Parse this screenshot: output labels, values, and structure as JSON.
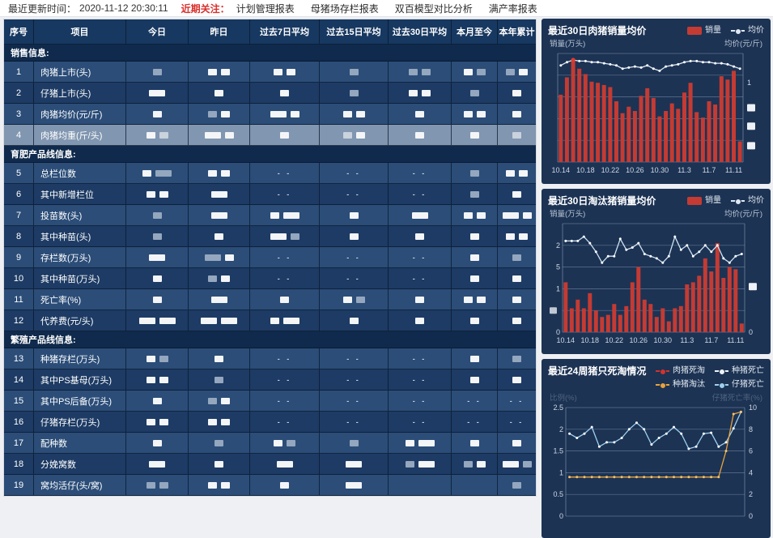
{
  "topbar": {
    "update_label": "最近更新时间：",
    "update_time": "2020-11-12 20:30:11",
    "focus_label": "近期关注：",
    "menu": [
      "计划管理报表",
      "母猪场存栏报表",
      "双百模型对比分析",
      "满产率报表"
    ]
  },
  "table": {
    "columns": [
      "序号",
      "项目",
      "今日",
      "昨日",
      "过去7日平均",
      "过去15日平均",
      "过去30日平均",
      "本月至今",
      "本年累计"
    ],
    "redaction_note_colors": {
      "white_block": "#f3f5f7",
      "grey_block": "#94a7be"
    },
    "sections": [
      {
        "title": "销售信息:",
        "rows": [
          {
            "num": "1",
            "label": "肉猪上市(头)",
            "cells": [
              "g",
              "w w",
              "w w",
              "g",
              "g g",
              "w g",
              "g w"
            ]
          },
          {
            "num": "2",
            "label": "仔猪上市(头)",
            "cells": [
              "W",
              "w",
              "w",
              "g",
              "w w",
              "g",
              "w"
            ]
          },
          {
            "num": "3",
            "label": "肉猪均价(元/斤)",
            "cells": [
              "w",
              "g w",
              "W w",
              "w w",
              "w",
              "w w",
              "w"
            ]
          },
          {
            "num": "4",
            "label": "肉猪均重(斤/头)",
            "cells": [
              "w g",
              "W w",
              "w",
              "g w",
              "w",
              "w",
              "g"
            ],
            "selected": true
          }
        ]
      },
      {
        "title": "育肥产品线信息:",
        "rows": [
          {
            "num": "5",
            "label": "总栏位数",
            "cells": [
              "w G",
              "w w",
              "-",
              "-",
              "-",
              "g",
              "w w"
            ]
          },
          {
            "num": "6",
            "label": "其中新增栏位",
            "cells": [
              "w w",
              "W",
              "-",
              "-",
              "-",
              "g",
              "w"
            ]
          },
          {
            "num": "7",
            "label": "投苗数(头)",
            "cells": [
              "g",
              "W",
              "w W",
              "w",
              "W",
              "w w",
              "W w"
            ]
          },
          {
            "num": "8",
            "label": "其中种苗(头)",
            "cells": [
              "g",
              "w",
              "W g",
              "w",
              "w",
              "w",
              "w w"
            ]
          },
          {
            "num": "9",
            "label": "存栏数(万头)",
            "cells": [
              "W",
              "G w",
              "-",
              "-",
              "-",
              "w",
              "g"
            ]
          },
          {
            "num": "10",
            "label": "其中种苗(万头)",
            "cells": [
              "w",
              "g w",
              "-",
              "-",
              "-",
              "w",
              "w"
            ]
          },
          {
            "num": "11",
            "label": "死亡率(%)",
            "cells": [
              "w",
              "W",
              "w",
              "w g",
              "w",
              "w w",
              "w"
            ]
          },
          {
            "num": "12",
            "label": "代养费(元/头)",
            "cells": [
              "W W",
              "W W",
              "w W",
              "w",
              "w",
              "w",
              "w"
            ]
          }
        ]
      },
      {
        "title": "繁殖产品线信息:",
        "rows": [
          {
            "num": "13",
            "label": "种猪存栏(万头)",
            "cells": [
              "w g",
              "w",
              "-",
              "-",
              "-",
              "w",
              "g"
            ]
          },
          {
            "num": "14",
            "label": "其中PS基母(万头)",
            "cells": [
              "w w",
              "g",
              "-",
              "-",
              "-",
              "w",
              "w"
            ]
          },
          {
            "num": "15",
            "label": "其中PS后备(万头)",
            "cells": [
              "w",
              "g w",
              "-",
              "-",
              "-",
              "-",
              "-"
            ]
          },
          {
            "num": "16",
            "label": "仔猪存栏(万头)",
            "cells": [
              "w w",
              "w w",
              "-",
              "-",
              "-",
              "-",
              "-"
            ]
          },
          {
            "num": "17",
            "label": "配种数",
            "cells": [
              "w",
              "g",
              "w g",
              "g",
              "w W",
              "w",
              "w"
            ]
          },
          {
            "num": "18",
            "label": "分娩窝数",
            "cells": [
              "W",
              "w",
              "W",
              "W",
              "g W",
              "g w",
              "W g"
            ]
          },
          {
            "num": "19",
            "label": "窝均活仔(头/窝)",
            "cells": [
              "g g",
              "w w",
              "w",
              "W",
              "",
              "",
              "g"
            ]
          }
        ]
      }
    ]
  },
  "chart_data": [
    {
      "type": "bar",
      "title": "最近30日肉猪销量均价",
      "legend": [
        {
          "name": "销量",
          "marker": "bar",
          "color": "#c43b33"
        },
        {
          "name": "均价",
          "marker": "line",
          "color": "#dfe8f2"
        }
      ],
      "ylabel_left": "销量(万头)",
      "ylabel_right": "均价(元/斤)",
      "axis_values_redacted": true,
      "x": [
        "10.14",
        "10.15",
        "10.16",
        "10.17",
        "10.18",
        "10.19",
        "10.20",
        "10.21",
        "10.22",
        "10.23",
        "10.24",
        "10.25",
        "10.26",
        "10.27",
        "10.28",
        "10.29",
        "10.30",
        "10.31",
        "11.1",
        "11.2",
        "11.3",
        "11.4",
        "11.5",
        "11.6",
        "11.7",
        "11.8",
        "11.9",
        "11.10",
        "11.11",
        "11.12"
      ],
      "xticks": [
        "10.14",
        "10.18",
        "10.22",
        "10.26",
        "10.30",
        "11.3",
        "11.7",
        "11.11"
      ],
      "xtick_indices": [
        0,
        4,
        8,
        12,
        16,
        20,
        24,
        28
      ],
      "ylim": [
        0,
        10
      ],
      "gridline_values": [
        0,
        2,
        4,
        6,
        8,
        10
      ],
      "bars": {
        "name": "销量",
        "color": "#c43b33",
        "values": [
          6.2,
          7.8,
          9.4,
          8.6,
          8.1,
          7.4,
          7.3,
          7.1,
          6.9,
          5.6,
          4.5,
          5.1,
          4.7,
          6.1,
          6.8,
          5.9,
          4.2,
          4.7,
          5.4,
          4.9,
          6.4,
          7.3,
          4.6,
          4.1,
          5.6,
          5.3,
          7.9,
          7.6,
          8.4,
          1.9
        ]
      },
      "lines": [
        {
          "name": "均价",
          "color": "#dfe8f2",
          "dot": "#ffffff",
          "highlight_index": 2,
          "highlight_color": "#e23b30",
          "values": [
            8.9,
            9.2,
            9.4,
            9.3,
            9.3,
            9.2,
            9.2,
            9.1,
            9.0,
            8.9,
            8.6,
            8.7,
            8.8,
            8.7,
            8.9,
            8.6,
            8.4,
            8.8,
            8.9,
            9.0,
            9.2,
            9.3,
            9.3,
            9.2,
            9.2,
            9.1,
            9.1,
            9.0,
            8.8,
            8.6
          ]
        }
      ],
      "left_ticks": [],
      "right_ticks": [
        {
          "text": "1",
          "frac": 0.73
        },
        {
          "redacted": true,
          "frac": 0.5
        },
        {
          "redacted": true,
          "frac": 0.33
        },
        {
          "redacted": true,
          "frac": 0.15
        }
      ]
    },
    {
      "type": "bar",
      "title": "最近30日淘汰猪销量均价",
      "legend": [
        {
          "name": "销量",
          "marker": "bar",
          "color": "#c43b33"
        },
        {
          "name": "均价",
          "marker": "line",
          "color": "#dfe8f2"
        }
      ],
      "ylabel_left": "销量(万头)",
      "ylabel_right": "均价(元/斤)",
      "x": [
        "10.14",
        "10.15",
        "10.16",
        "10.17",
        "10.18",
        "10.19",
        "10.20",
        "10.21",
        "10.22",
        "10.23",
        "10.24",
        "10.25",
        "10.26",
        "10.27",
        "10.28",
        "10.29",
        "10.30",
        "10.31",
        "11.1",
        "11.2",
        "11.3",
        "11.4",
        "11.5",
        "11.6",
        "11.7",
        "11.8",
        "11.9",
        "11.10",
        "11.11",
        "11.12"
      ],
      "xticks": [
        "10.14",
        "10.18",
        "10.22",
        "10.26",
        "10.30",
        "11.3",
        "11.7",
        "11.11"
      ],
      "xtick_indices": [
        0,
        4,
        8,
        12,
        16,
        20,
        24,
        28
      ],
      "ylim": [
        0,
        2.5
      ],
      "gridline_values": [
        0,
        0.5,
        1,
        1.5,
        2,
        2.5
      ],
      "bars": {
        "name": "销量",
        "color": "#c43b33",
        "values": [
          1.15,
          0.55,
          0.75,
          0.55,
          0.9,
          0.5,
          0.35,
          0.4,
          0.65,
          0.4,
          0.6,
          1.15,
          1.5,
          0.75,
          0.65,
          0.35,
          0.55,
          0.25,
          0.55,
          0.6,
          1.1,
          1.15,
          1.3,
          1.7,
          1.4,
          2.05,
          1.25,
          1.5,
          1.45,
          0.2
        ]
      },
      "lines": [
        {
          "name": "均价",
          "color": "#cfe2f2",
          "dot": "#ffffff",
          "values": [
            2.1,
            2.1,
            2.1,
            2.2,
            2.05,
            1.85,
            1.6,
            1.75,
            1.75,
            2.15,
            1.9,
            1.95,
            2.05,
            1.8,
            1.75,
            1.7,
            1.6,
            1.75,
            2.2,
            1.9,
            2.0,
            1.75,
            1.85,
            2.0,
            1.85,
            2.0,
            1.7,
            1.6,
            1.75,
            1.8
          ]
        }
      ],
      "left_ticks": [
        {
          "text": "2",
          "v": 2
        },
        {
          "text": "5",
          "v": 1.5
        },
        {
          "text": "1",
          "v": 1
        },
        {
          "redacted": true,
          "v": 0.5
        },
        {
          "text": "0",
          "v": 0
        }
      ],
      "right_ticks": [
        {
          "redacted": true,
          "frac": 0.42
        },
        {
          "text": "0",
          "frac": 0
        }
      ]
    },
    {
      "type": "line",
      "title": "最近24周猪只死淘情况",
      "legend": [
        {
          "name": "肉猪死淘",
          "marker": "line",
          "color": "#d0342c"
        },
        {
          "name": "种猪死亡",
          "marker": "line",
          "color": "#eef2f6"
        },
        {
          "name": "种猪淘汰",
          "marker": "line",
          "color": "#e8a33d"
        },
        {
          "name": "仔猪死亡",
          "marker": "line",
          "color": "#9fd0ee"
        }
      ],
      "ylabel_left": "比例(%)",
      "ylabel_right": "仔猪死亡率(%)",
      "axis_labels_dim": true,
      "x_count": 24,
      "xticks": [],
      "xtick_indices": [],
      "ylim": [
        0,
        2.5
      ],
      "gridline_values": [
        0,
        0.5,
        1,
        1.5,
        2,
        2.5
      ],
      "lines": [
        {
          "name": "仔猪死亡",
          "color": "#9fd0ee",
          "dot": "#ffffff",
          "values": [
            1.9,
            1.8,
            1.9,
            2.05,
            1.6,
            1.7,
            1.7,
            1.8,
            2.0,
            2.15,
            2.0,
            1.65,
            1.8,
            1.9,
            2.05,
            1.9,
            1.55,
            1.6,
            1.9,
            1.92,
            1.6,
            1.7,
            2.02,
            2.4
          ]
        },
        {
          "name": "种猪淘汰",
          "color": "#e8a33d",
          "dot": "#f5c469",
          "values": [
            0.9,
            0.9,
            0.9,
            0.9,
            0.9,
            0.9,
            0.9,
            0.9,
            0.9,
            0.9,
            0.9,
            0.9,
            0.9,
            0.9,
            0.9,
            0.9,
            0.9,
            0.9,
            0.9,
            0.9,
            0.9,
            1.5,
            2.35,
            2.4
          ]
        },
        {
          "name": "肉猪死淘",
          "color": "#d0342c",
          "dot": "#d0342c",
          "values": []
        },
        {
          "name": "种猪死亡",
          "color": "#eef2f6",
          "dot": "#ffffff",
          "values": []
        }
      ],
      "left_ticks": [
        {
          "text": "2.5",
          "v": 2.5
        },
        {
          "text": "2",
          "v": 2
        },
        {
          "text": "1.5",
          "v": 1.5
        },
        {
          "text": "1",
          "v": 1
        },
        {
          "text": "0.5",
          "v": 0.5
        },
        {
          "text": "0",
          "v": 0
        }
      ],
      "right_ticks": [
        {
          "text": "10",
          "v": 2.5
        },
        {
          "text": "8",
          "v": 2
        },
        {
          "text": "6",
          "v": 1.5
        },
        {
          "text": "4",
          "v": 1
        },
        {
          "text": "2",
          "v": 0.5
        },
        {
          "text": "0",
          "v": 0
        }
      ]
    }
  ]
}
